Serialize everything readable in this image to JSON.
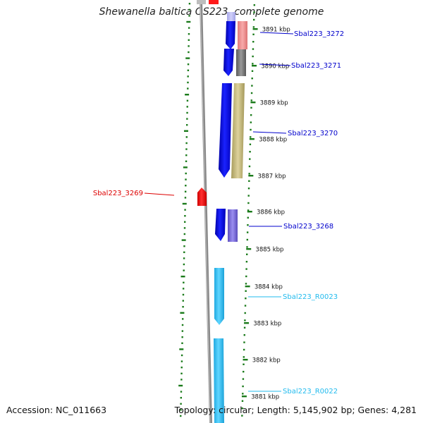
{
  "title": "Shewanella baltica OS223, complete genome",
  "accession": "Accession: NC_011663",
  "topology": "Topology: circular; Length: 5,145,902 bp; Genes: 4,281",
  "colors": {
    "gene_blue": "#0a10e8",
    "gene_red": "#ff0a0a",
    "rna_cyan": "#36c6f0",
    "band_pink": "#f29595",
    "band_gray": "#7c7c7c",
    "band_khaki": "#cbbf84",
    "band_lavender": "#7f72d8",
    "tick_green": "#1a7a1a",
    "backbone": "#888888"
  },
  "kbp_ticks": [
    "3891 kbp",
    "3890 kbp",
    "3889 kbp",
    "3888 kbp",
    "3887 kbp",
    "3886 kbp",
    "3885 kbp",
    "3884 kbp",
    "3883 kbp",
    "3882 kbp",
    "3881 kbp"
  ],
  "gene_labels": [
    {
      "text": "Sbal223_3272",
      "color": "#0000cc"
    },
    {
      "text": "Sbal223_3271",
      "color": "#0000cc"
    },
    {
      "text": "Sbal223_3270",
      "color": "#0000cc"
    },
    {
      "text": "Sbal223_3269",
      "color": "#dd0000"
    },
    {
      "text": "Sbal223_3268",
      "color": "#0000cc"
    },
    {
      "text": "Sbal223_R0023",
      "color": "#22bbee"
    },
    {
      "text": "Sbal223_R0022",
      "color": "#22bbee"
    }
  ]
}
